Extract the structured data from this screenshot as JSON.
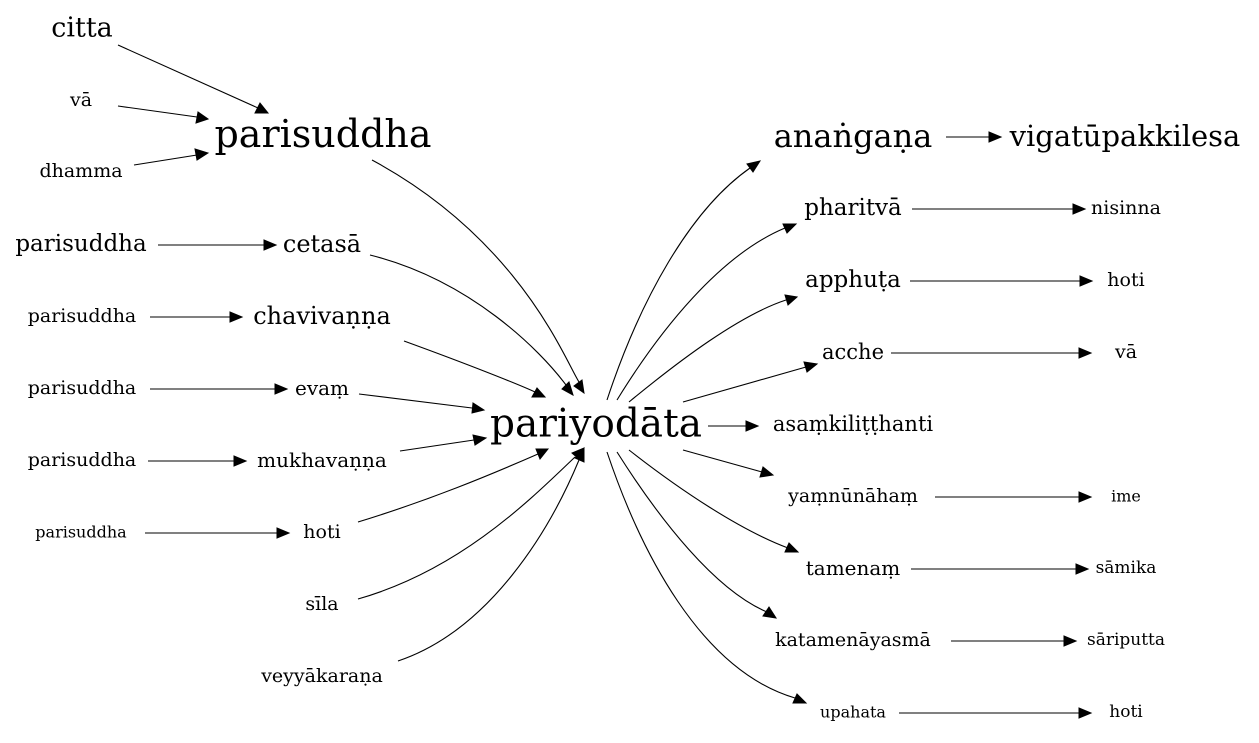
{
  "graph": {
    "nodes": [
      {
        "id": "n_citta",
        "label": "citta"
      },
      {
        "id": "n_va_left",
        "label": "vā"
      },
      {
        "id": "n_dhamma",
        "label": "dhamma"
      },
      {
        "id": "n_parisuddha_main",
        "label": "parisuddha"
      },
      {
        "id": "n_parisuddha_1",
        "label": "parisuddha"
      },
      {
        "id": "n_cetasa",
        "label": "cetasā"
      },
      {
        "id": "n_parisuddha_2",
        "label": "parisuddha"
      },
      {
        "id": "n_chavivanna",
        "label": "chavivaṇṇa"
      },
      {
        "id": "n_parisuddha_3",
        "label": "parisuddha"
      },
      {
        "id": "n_evam",
        "label": "evaṃ"
      },
      {
        "id": "n_parisuddha_4",
        "label": "parisuddha"
      },
      {
        "id": "n_mukhavanna",
        "label": "mukhavaṇṇa"
      },
      {
        "id": "n_parisuddha_5",
        "label": "parisuddha"
      },
      {
        "id": "n_hoti_left",
        "label": "hoti"
      },
      {
        "id": "n_sila",
        "label": "sīla"
      },
      {
        "id": "n_veyyakarana",
        "label": "veyyākaraṇa"
      },
      {
        "id": "n_pariyodata",
        "label": "pariyodāta"
      },
      {
        "id": "n_anangana",
        "label": "anaṅgaṇa"
      },
      {
        "id": "n_vigatupakkilesa",
        "label": "vigatūpakkilesa"
      },
      {
        "id": "n_pharitva",
        "label": "pharitvā"
      },
      {
        "id": "n_nisinna",
        "label": "nisinna"
      },
      {
        "id": "n_apphuta",
        "label": "apphuṭa"
      },
      {
        "id": "n_hoti_r1",
        "label": "hoti"
      },
      {
        "id": "n_acche",
        "label": "acche"
      },
      {
        "id": "n_va_right",
        "label": "vā"
      },
      {
        "id": "n_asamkilitthanti",
        "label": "asaṃkiliṭṭhanti"
      },
      {
        "id": "n_yamnunaham",
        "label": "yaṃnūnāhaṃ"
      },
      {
        "id": "n_ime",
        "label": "ime"
      },
      {
        "id": "n_tamenam",
        "label": "tamenaṃ"
      },
      {
        "id": "n_samika",
        "label": "sāmika"
      },
      {
        "id": "n_katamenayasma",
        "label": "katamenāyasmā"
      },
      {
        "id": "n_sariputta",
        "label": "sāriputta"
      },
      {
        "id": "n_upahata",
        "label": "upahata"
      },
      {
        "id": "n_hoti_r2",
        "label": "hoti"
      }
    ],
    "edges": [
      {
        "from": "n_citta",
        "to": "n_parisuddha_main"
      },
      {
        "from": "n_va_left",
        "to": "n_parisuddha_main"
      },
      {
        "from": "n_dhamma",
        "to": "n_parisuddha_main"
      },
      {
        "from": "n_parisuddha_main",
        "to": "n_pariyodata"
      },
      {
        "from": "n_parisuddha_1",
        "to": "n_cetasa"
      },
      {
        "from": "n_cetasa",
        "to": "n_pariyodata"
      },
      {
        "from": "n_parisuddha_2",
        "to": "n_chavivanna"
      },
      {
        "from": "n_chavivanna",
        "to": "n_pariyodata"
      },
      {
        "from": "n_parisuddha_3",
        "to": "n_evam"
      },
      {
        "from": "n_evam",
        "to": "n_pariyodata"
      },
      {
        "from": "n_parisuddha_4",
        "to": "n_mukhavanna"
      },
      {
        "from": "n_mukhavanna",
        "to": "n_pariyodata"
      },
      {
        "from": "n_parisuddha_5",
        "to": "n_hoti_left"
      },
      {
        "from": "n_hoti_left",
        "to": "n_pariyodata"
      },
      {
        "from": "n_sila",
        "to": "n_pariyodata"
      },
      {
        "from": "n_veyyakarana",
        "to": "n_pariyodata"
      },
      {
        "from": "n_pariyodata",
        "to": "n_anangana"
      },
      {
        "from": "n_anangana",
        "to": "n_vigatupakkilesa"
      },
      {
        "from": "n_pariyodata",
        "to": "n_pharitva"
      },
      {
        "from": "n_pharitva",
        "to": "n_nisinna"
      },
      {
        "from": "n_pariyodata",
        "to": "n_apphuta"
      },
      {
        "from": "n_apphuta",
        "to": "n_hoti_r1"
      },
      {
        "from": "n_pariyodata",
        "to": "n_acche"
      },
      {
        "from": "n_acche",
        "to": "n_va_right"
      },
      {
        "from": "n_pariyodata",
        "to": "n_asamkilitthanti"
      },
      {
        "from": "n_pariyodata",
        "to": "n_yamnunaham"
      },
      {
        "from": "n_yamnunaham",
        "to": "n_ime"
      },
      {
        "from": "n_pariyodata",
        "to": "n_tamenam"
      },
      {
        "from": "n_tamenam",
        "to": "n_samika"
      },
      {
        "from": "n_pariyodata",
        "to": "n_katamenayasma"
      },
      {
        "from": "n_katamenayasma",
        "to": "n_sariputta"
      },
      {
        "from": "n_pariyodata",
        "to": "n_upahata"
      },
      {
        "from": "n_upahata",
        "to": "n_hoti_r2"
      }
    ]
  }
}
